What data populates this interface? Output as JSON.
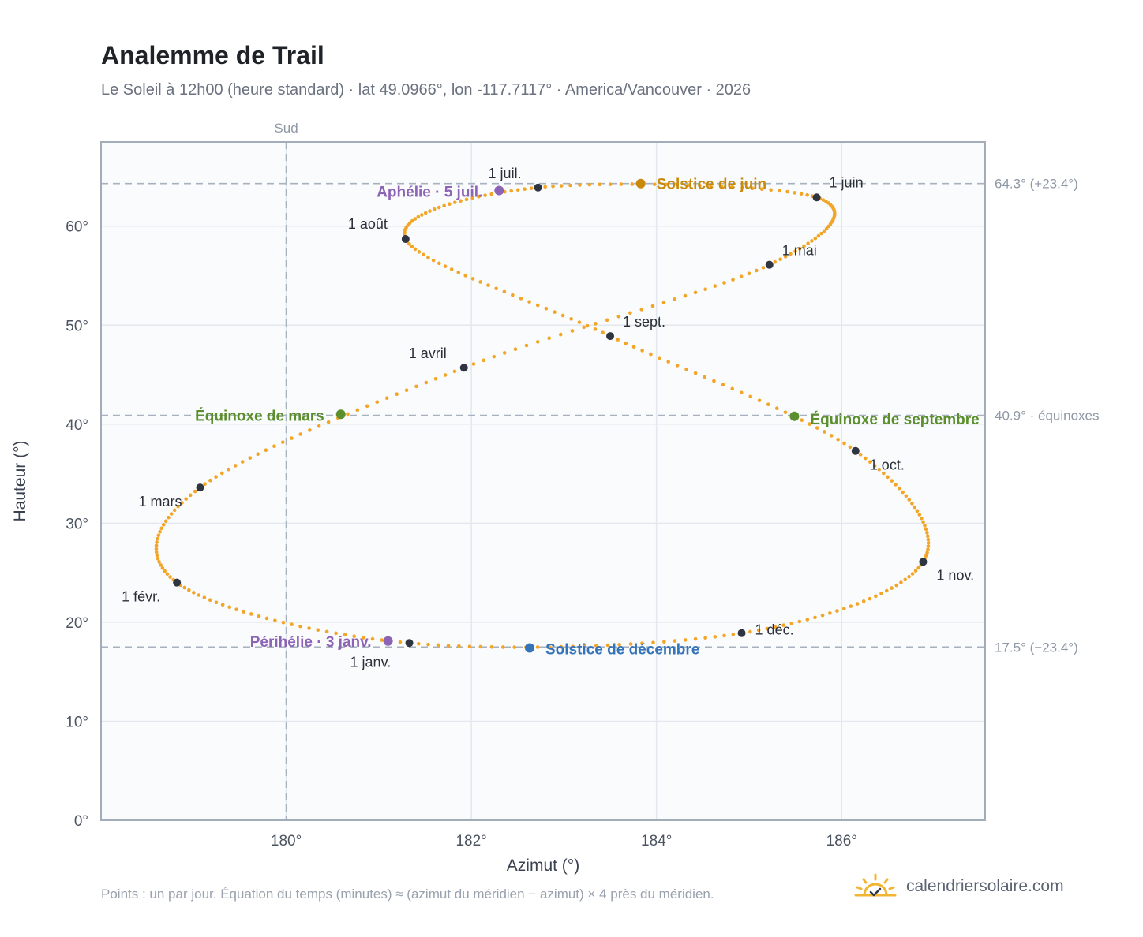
{
  "header": {
    "title": "Analemme de Trail",
    "subtitle": "Le Soleil à 12h00 (heure standard) · lat 49.0966°, lon -117.7117° · America/Vancouver · 2026"
  },
  "footer": {
    "note": "Points : un par jour. Équation du temps (minutes) ≈ (azimut du méridien − azimut) × 4 près du méridien.",
    "brand": "calendriersolaire.com",
    "brand_icon": "sun-icon"
  },
  "chart_data": {
    "type": "scatter",
    "xlabel": "Azimut (°)",
    "ylabel": "Hauteur (°)",
    "xlim": [
      178.0,
      187.55
    ],
    "ylim": [
      0,
      68.5
    ],
    "x_ticks": [
      180,
      182,
      184,
      186
    ],
    "x_tick_labels": [
      "180°",
      "182°",
      "184°",
      "186°"
    ],
    "y_ticks": [
      0,
      10,
      20,
      30,
      40,
      50,
      60
    ],
    "y_tick_labels": [
      "0°",
      "10°",
      "20°",
      "30°",
      "40°",
      "50°",
      "60°"
    ],
    "grid": true,
    "colors": {
      "trail": "#f2a527",
      "month": "#2f3540",
      "june": "#c98a0c",
      "december": "#3574b8",
      "equinox": "#5b8f2e",
      "apsis": "#8c63b5",
      "ref": "#a8b2bf"
    },
    "south_line": {
      "x": 180,
      "label": "Sud"
    },
    "reference_lines": [
      {
        "y": 64.3,
        "label": "64.3° (+23.4°)"
      },
      {
        "y": 40.9,
        "label": "40.9° · équinoxes"
      },
      {
        "y": 17.5,
        "label": "17.5° (−23.4°)"
      }
    ],
    "month_points": [
      {
        "label": "1 janv.",
        "x": 181.33,
        "y": 17.9
      },
      {
        "label": "1 févr.",
        "x": 178.82,
        "y": 24.0
      },
      {
        "label": "1 mars",
        "x": 179.07,
        "y": 33.6
      },
      {
        "label": "1 avril",
        "x": 181.92,
        "y": 45.7
      },
      {
        "label": "1 mai",
        "x": 185.22,
        "y": 56.1
      },
      {
        "label": "1 juin",
        "x": 185.73,
        "y": 62.9
      },
      {
        "label": "1 juil.",
        "x": 182.72,
        "y": 63.9
      },
      {
        "label": "1 août",
        "x": 181.29,
        "y": 58.7
      },
      {
        "label": "1 sept.",
        "x": 183.5,
        "y": 48.9
      },
      {
        "label": "1 oct.",
        "x": 186.15,
        "y": 37.3
      },
      {
        "label": "1 nov.",
        "x": 186.88,
        "y": 26.1
      },
      {
        "label": "1 déc.",
        "x": 184.92,
        "y": 18.9
      }
    ],
    "events": [
      {
        "label": "Solstice de juin",
        "x": 183.83,
        "y": 64.3,
        "kind": "june"
      },
      {
        "label": "Solstice de décembre",
        "x": 182.63,
        "y": 17.4,
        "kind": "december"
      },
      {
        "label": "Équinoxe de mars",
        "x": 180.59,
        "y": 41.0,
        "kind": "equinox"
      },
      {
        "label": "Équinoxe de septembre",
        "x": 185.49,
        "y": 40.8,
        "kind": "equinox"
      },
      {
        "label": "Aphélie · 5 juil.",
        "x": 182.3,
        "y": 63.6,
        "kind": "apsis"
      },
      {
        "label": "Périhélie · 3 janv.",
        "x": 181.1,
        "y": 18.1,
        "kind": "apsis"
      }
    ]
  }
}
